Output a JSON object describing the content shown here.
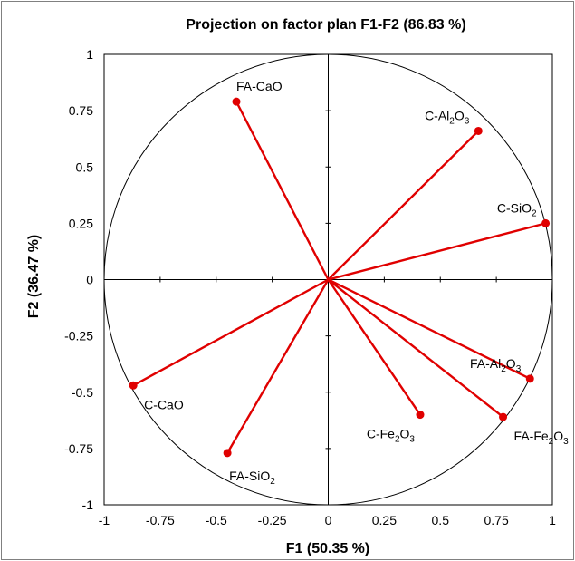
{
  "chart_data": {
    "type": "scatter",
    "title": "Projection on factor plan F1-F2 (86.83 %)",
    "xlabel": "F1 (50.35 %)",
    "ylabel": "F2 (36.47 %)",
    "xlim": [
      -1,
      1
    ],
    "ylim": [
      -1,
      1
    ],
    "x_ticks": [
      "-1",
      "-0.75",
      "-0.5",
      "-0.25",
      "0",
      "0.25",
      "0.5",
      "0.75",
      "1"
    ],
    "y_ticks": [
      "1",
      "0.75",
      "0.5",
      "0.25",
      "0",
      "-0.25",
      "-0.5",
      "-0.75",
      "-1"
    ],
    "grid": false,
    "unit_circle": true,
    "vector_color": "#e00000",
    "points": [
      {
        "prefix": "FA-CaO",
        "sub": "",
        "suffix": "",
        "x": -0.41,
        "y": 0.79,
        "pos": "above"
      },
      {
        "prefix": "C-Al",
        "sub": "2",
        "suffix": "O3",
        "x": 0.67,
        "y": 0.66,
        "pos": "above-left"
      },
      {
        "prefix": "C-SiO",
        "sub": "2",
        "suffix": "",
        "x": 0.97,
        "y": 0.25,
        "pos": "above-left"
      },
      {
        "prefix": "FA-Al",
        "sub": "2",
        "suffix": "O3",
        "x": 0.9,
        "y": -0.44,
        "pos": "above-left"
      },
      {
        "prefix": "FA-Fe",
        "sub": "2",
        "suffix": "O3",
        "x": 0.78,
        "y": -0.61,
        "pos": "below-right"
      },
      {
        "prefix": "C-Fe",
        "sub": "2",
        "suffix": "O3",
        "x": 0.41,
        "y": -0.6,
        "pos": "below-left"
      },
      {
        "prefix": "FA-SiO",
        "sub": "2",
        "suffix": "",
        "x": -0.45,
        "y": -0.77,
        "pos": "below"
      },
      {
        "prefix": "C-CaO",
        "sub": "",
        "suffix": "",
        "x": -0.87,
        "y": -0.47,
        "pos": "below-right"
      }
    ]
  }
}
